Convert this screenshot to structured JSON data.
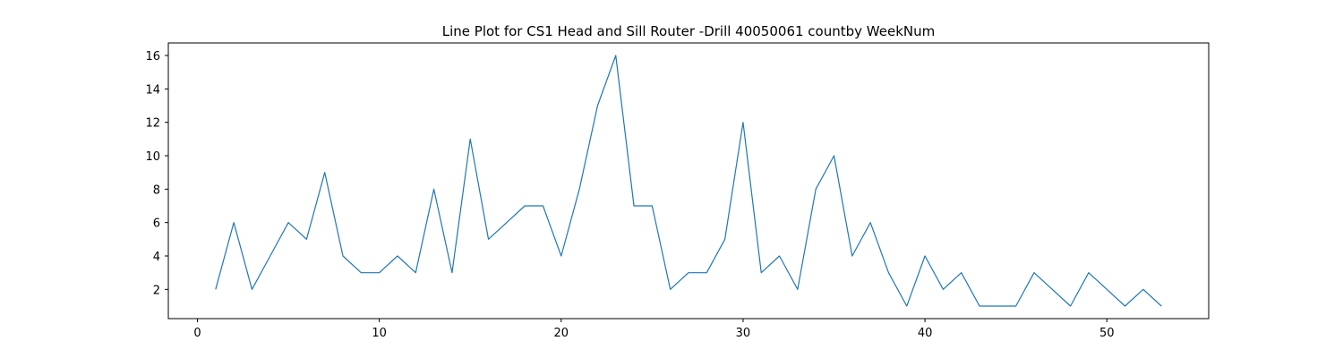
{
  "chart_data": {
    "type": "line",
    "title": "Line Plot for CS1 Head and Sill Router -Drill 40050061 countby WeekNum",
    "xlabel": "",
    "ylabel": "",
    "xlim": [
      -1.6,
      55.6
    ],
    "ylim": [
      0.25,
      16.75
    ],
    "xticks": [
      0,
      10,
      20,
      30,
      40,
      50
    ],
    "yticks": [
      2,
      4,
      6,
      8,
      10,
      12,
      14,
      16
    ],
    "grid": false,
    "series": [
      {
        "color": "#1f77b4",
        "x": [
          1,
          2,
          3,
          4,
          5,
          6,
          7,
          8,
          9,
          10,
          11,
          12,
          13,
          14,
          15,
          16,
          17,
          18,
          19,
          20,
          21,
          22,
          23,
          24,
          25,
          26,
          27,
          28,
          29,
          30,
          31,
          32,
          33,
          34,
          35,
          36,
          37,
          38,
          39,
          40,
          41,
          42,
          43,
          44,
          45,
          46,
          47,
          48,
          49,
          50,
          51,
          52,
          53
        ],
        "y": [
          2,
          6,
          2,
          4,
          6,
          5,
          9,
          4,
          3,
          3,
          4,
          3,
          8,
          3,
          11,
          5,
          6,
          7,
          7,
          4,
          8,
          13,
          16,
          7,
          7,
          2,
          3,
          3,
          5,
          12,
          3,
          4,
          2,
          8,
          10,
          4,
          6,
          3,
          1,
          4,
          2,
          3,
          1,
          1,
          1,
          3,
          2,
          1,
          3,
          2,
          1,
          2,
          1
        ]
      }
    ]
  }
}
